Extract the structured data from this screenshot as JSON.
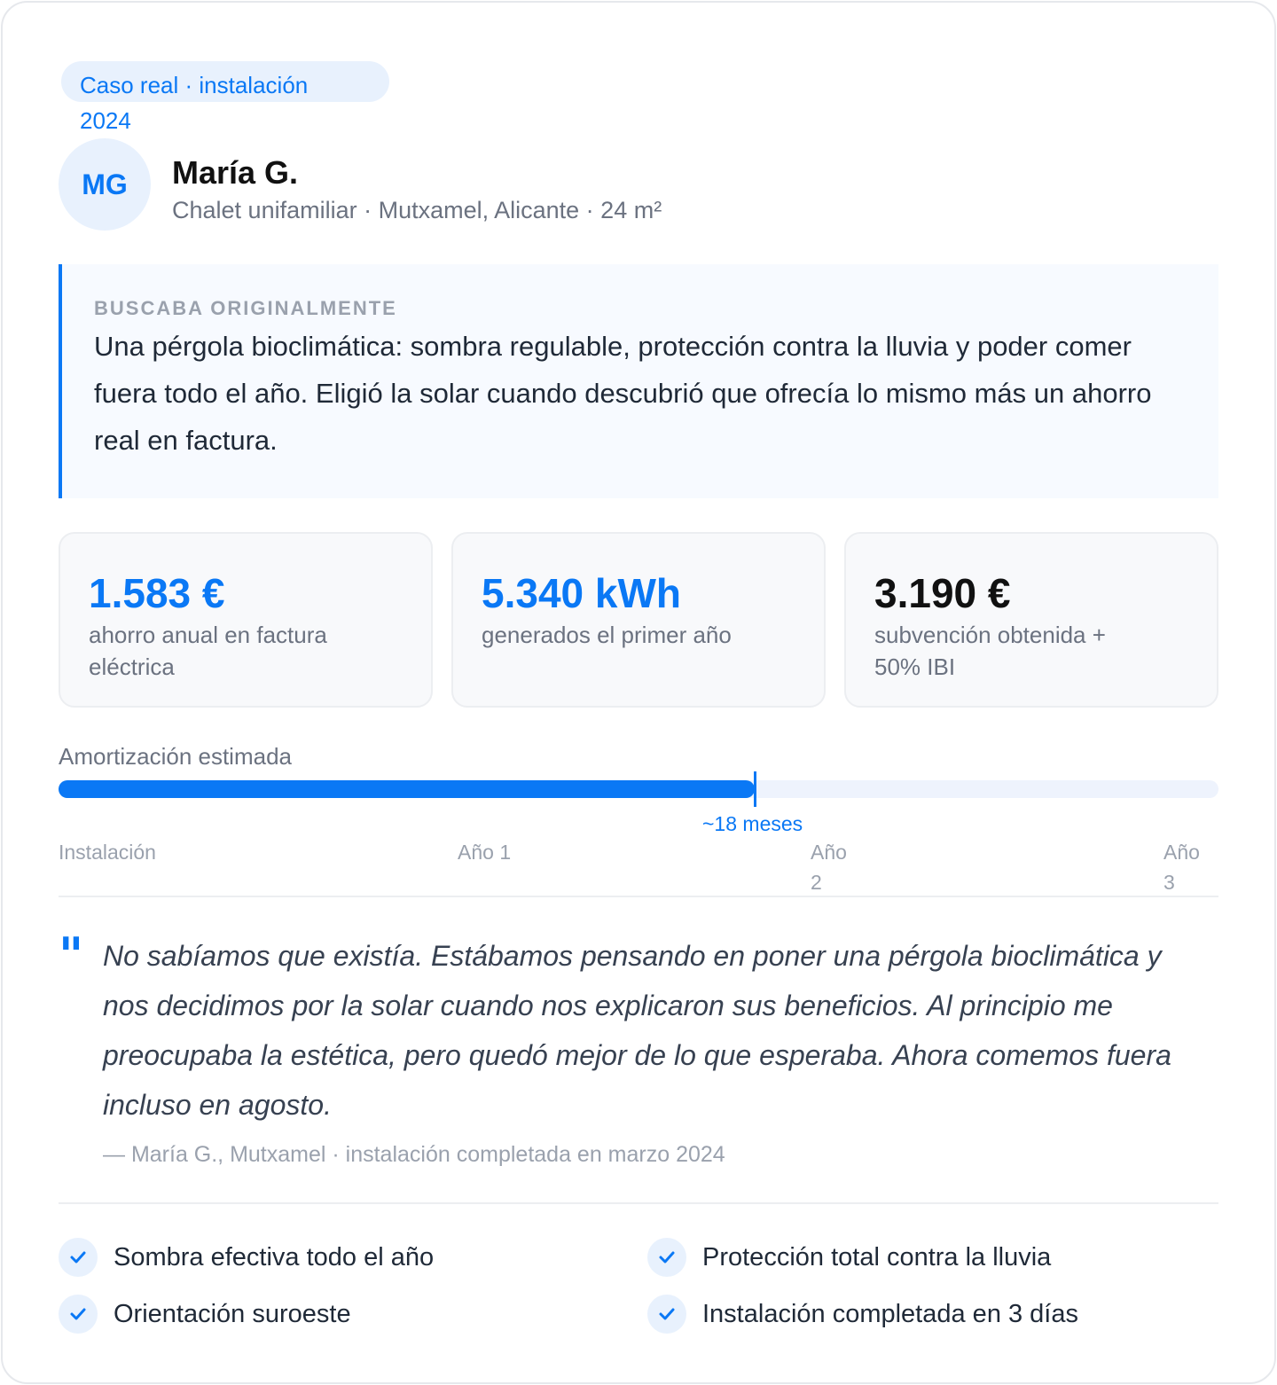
{
  "badge": "Caso real · instalación 2024",
  "client": {
    "initials": "MG",
    "name": "María G.",
    "meta": "Chalet unifamiliar · Mutxamel, Alicante · 24 m²"
  },
  "sought": {
    "label": "BUSCABA ORIGINALMENTE",
    "text": "Una pérgola bioclimática: sombra regulable, protección contra la lluvia y poder comer fuera todo el año. Eligió la solar cuando descubrió que ofrecía lo mismo más un ahorro real en factura."
  },
  "stats": [
    {
      "value": "1.583 €",
      "label": "ahorro anual en factura eléctrica",
      "color": "#0a78f5"
    },
    {
      "value": "5.340 kWh",
      "label": "generados el primer año",
      "color": "#0a78f5"
    },
    {
      "value": "3.190 €",
      "label": "subvención obtenida + 50% IBI",
      "color": "#111111"
    }
  ],
  "amortization": {
    "title": "Amortización estimada",
    "progress_percent": 60,
    "marker_label": "~18 meses",
    "ticks": [
      "Instalación",
      "Año 1",
      "Año 2",
      "Año 3"
    ]
  },
  "testimonial": {
    "quote_icon": "quote-icon",
    "text": "No sabíamos que existía. Estábamos pensando en poner una pérgola bioclimática y nos decidimos por la solar cuando nos explicaron sus beneficios. Al principio me preocupaba la estética, pero quedó mejor de lo que esperaba. Ahora comemos fuera incluso en agosto.",
    "attribution": "— María G., Mutxamel · instalación completada en marzo 2024"
  },
  "features": [
    "Sombra efectiva todo el año",
    "Protección total contra la lluvia",
    "Orientación suroeste",
    "Instalación completada en 3 días"
  ],
  "colors": {
    "accent": "#0a78f5"
  }
}
